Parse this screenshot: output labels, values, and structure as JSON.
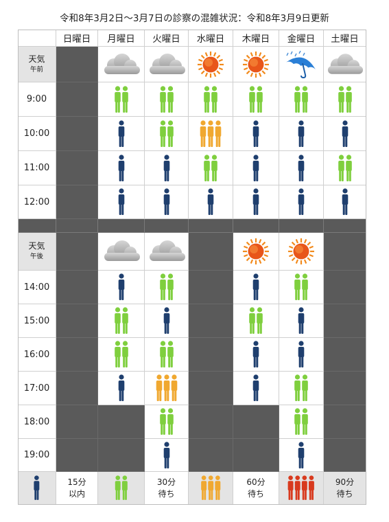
{
  "title": "令和8年3月2日〜3月7日の診察の混雑状況：令和8年3月9日更新",
  "days": [
    "日曜日",
    "月曜日",
    "火曜日",
    "水曜日",
    "木曜日",
    "金曜日",
    "土曜日"
  ],
  "morning": {
    "weather_label": "天気",
    "weather_sub": "午前",
    "weather": [
      "closed",
      "cloud-icon",
      "cloud-icon",
      "sun-icon",
      "sun-icon",
      "umbrella-icon",
      "cloud-icon"
    ],
    "slots": [
      {
        "time": "9:00",
        "levels": [
          "closed",
          "30",
          "30",
          "30",
          "30",
          "30",
          "30"
        ]
      },
      {
        "time": "10:00",
        "levels": [
          "closed",
          "15",
          "30",
          "60",
          "15",
          "15",
          "15"
        ]
      },
      {
        "time": "11:00",
        "levels": [
          "closed",
          "15",
          "15",
          "30",
          "15",
          "15",
          "30"
        ]
      },
      {
        "time": "12:00",
        "levels": [
          "closed",
          "15",
          "15",
          "15",
          "15",
          "15",
          "15"
        ]
      }
    ]
  },
  "afternoon": {
    "weather_label": "天気",
    "weather_sub": "午後",
    "weather": [
      "closed",
      "cloud-icon",
      "cloud-icon",
      "closed",
      "sun-icon",
      "sun-icon",
      "closed"
    ],
    "slots": [
      {
        "time": "14:00",
        "levels": [
          "closed",
          "15",
          "30",
          "closed",
          "15",
          "30",
          "closed"
        ]
      },
      {
        "time": "15:00",
        "levels": [
          "closed",
          "30",
          "15",
          "closed",
          "30",
          "15",
          "closed"
        ]
      },
      {
        "time": "16:00",
        "levels": [
          "closed",
          "30",
          "30",
          "closed",
          "15",
          "15",
          "closed"
        ]
      },
      {
        "time": "17:00",
        "levels": [
          "closed",
          "15",
          "60",
          "closed",
          "15",
          "30",
          "closed"
        ]
      },
      {
        "time": "18:00",
        "levels": [
          "closed",
          "closed",
          "30",
          "closed",
          "closed",
          "30",
          "closed"
        ]
      },
      {
        "time": "19:00",
        "levels": [
          "closed",
          "closed",
          "15",
          "closed",
          "closed",
          "15",
          "closed"
        ]
      }
    ]
  },
  "legend": [
    {
      "level": "15",
      "line1": "15分",
      "line2": "以内"
    },
    {
      "level": "30",
      "line1": "30分",
      "line2": "待ち"
    },
    {
      "level": "60",
      "line1": "60分",
      "line2": "待ち"
    },
    {
      "level": "90",
      "line1": "90分",
      "line2": "待ち"
    }
  ],
  "colors": {
    "15": "#1f3f6e",
    "30": "#7fcf3e",
    "60": "#f0a830",
    "90": "#d83a1e"
  }
}
